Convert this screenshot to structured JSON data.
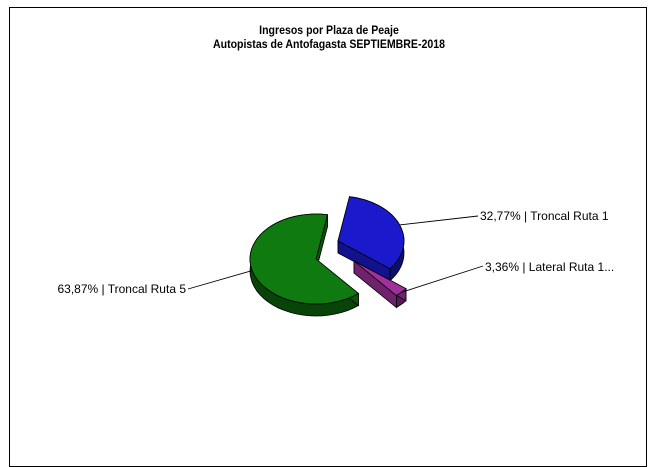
{
  "chart_data": {
    "type": "pie",
    "title": "Ingresos por Plaza de Peaje",
    "subtitle": "Autopistas de Antofagasta SEPTIEMBRE-2018",
    "slices": [
      {
        "label": "Troncal Ruta 1",
        "value": 32.77,
        "display": "32,77% | Troncal Ruta 1",
        "color": "#1a1acc"
      },
      {
        "label": "Lateral Ruta 1...",
        "value": 3.36,
        "display": "3,36%  |  Lateral  Ruta 1...",
        "color": "#a0309c"
      },
      {
        "label": "Troncal Ruta 5",
        "value": 63.87,
        "display": "63,87% | Troncal Ruta 5",
        "color": "#0f7a0f"
      }
    ],
    "legend": "none",
    "exploded": true,
    "three_d": true
  }
}
